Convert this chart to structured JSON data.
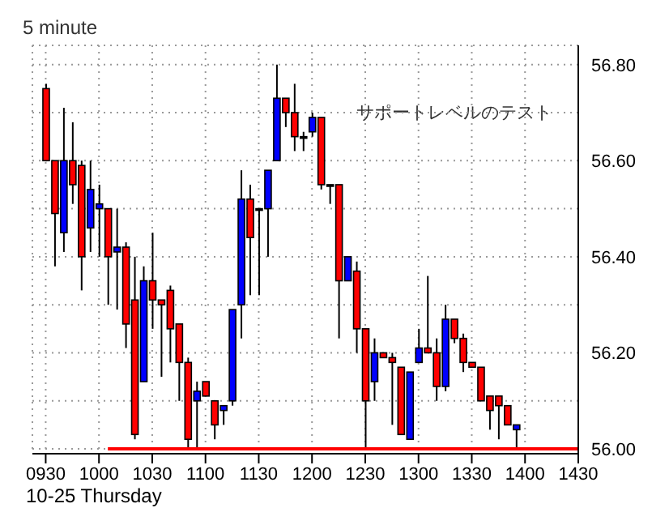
{
  "chart_data": {
    "type": "candlestick",
    "title": "5 minute",
    "xlabel": "10-25 Thursday",
    "annotations": [
      "サポートレベルのテスト"
    ],
    "categories": [
      "0930",
      null,
      null,
      null,
      null,
      null,
      "1000",
      null,
      null,
      null,
      null,
      null,
      "1030",
      null,
      null,
      null,
      null,
      null,
      "1100",
      null,
      null,
      null,
      null,
      null,
      "1130",
      null,
      null,
      null,
      null,
      null,
      "1200",
      null,
      null,
      null,
      null,
      null,
      "1230",
      null,
      null,
      null,
      null,
      null,
      "1300",
      null,
      null,
      null,
      null,
      null,
      "1330",
      null,
      null,
      null,
      null,
      null,
      "1400",
      null,
      null,
      null,
      null,
      null,
      "1430"
    ],
    "ohlc": [
      [
        56.75,
        56.76,
        56.6,
        56.6
      ],
      [
        56.6,
        56.6,
        56.38,
        56.49
      ],
      [
        56.45,
        56.71,
        56.41,
        56.6
      ],
      [
        56.6,
        56.68,
        56.51,
        56.55
      ],
      [
        56.59,
        56.6,
        56.33,
        56.4
      ],
      [
        56.46,
        56.6,
        56.41,
        56.54
      ],
      [
        56.5,
        56.55,
        56.4,
        56.51
      ],
      [
        56.5,
        56.5,
        56.3,
        56.4
      ],
      [
        56.41,
        56.5,
        56.29,
        56.42
      ],
      [
        56.42,
        56.43,
        56.21,
        56.26
      ],
      [
        56.31,
        56.4,
        56.02,
        56.03
      ],
      [
        56.14,
        56.38,
        56.14,
        56.35
      ],
      [
        56.35,
        56.45,
        56.25,
        56.31
      ],
      [
        56.31,
        56.31,
        56.15,
        56.3
      ],
      [
        56.33,
        56.34,
        56.18,
        56.25
      ],
      [
        56.26,
        56.26,
        56.1,
        56.18
      ],
      [
        56.18,
        56.19,
        56.0,
        56.02
      ],
      [
        56.1,
        56.14,
        56.0,
        56.12
      ],
      [
        56.14,
        56.14,
        56.11,
        56.11
      ],
      [
        56.1,
        56.1,
        56.02,
        56.05
      ],
      [
        56.08,
        56.09,
        56.05,
        56.09
      ],
      [
        56.1,
        56.29,
        56.09,
        56.29
      ],
      [
        56.3,
        56.58,
        56.23,
        56.52
      ],
      [
        56.52,
        56.55,
        56.32,
        56.44
      ],
      [
        56.5,
        56.5,
        56.32,
        56.5
      ],
      [
        56.5,
        56.58,
        56.4,
        56.58
      ],
      [
        56.6,
        56.8,
        56.6,
        56.73
      ],
      [
        56.73,
        56.73,
        56.67,
        56.7
      ],
      [
        56.7,
        56.76,
        56.62,
        56.65
      ],
      [
        56.65,
        56.66,
        56.62,
        56.65
      ],
      [
        56.66,
        56.7,
        56.65,
        56.69
      ],
      [
        56.69,
        56.69,
        56.54,
        56.55
      ],
      [
        56.55,
        56.55,
        56.51,
        56.55
      ],
      [
        56.55,
        56.55,
        56.23,
        56.35
      ],
      [
        56.35,
        56.4,
        56.35,
        56.4
      ],
      [
        56.37,
        56.39,
        56.2,
        56.25
      ],
      [
        56.25,
        56.25,
        56.0,
        56.1
      ],
      [
        56.14,
        56.23,
        56.1,
        56.2
      ],
      [
        56.2,
        56.2,
        56.19,
        56.19
      ],
      [
        56.19,
        56.2,
        56.05,
        56.18
      ],
      [
        56.17,
        56.17,
        56.03,
        56.03
      ],
      [
        56.02,
        56.16,
        56.02,
        56.16
      ],
      [
        56.18,
        56.25,
        56.18,
        56.21
      ],
      [
        56.21,
        56.36,
        56.2,
        56.2
      ],
      [
        56.2,
        56.23,
        56.1,
        56.13
      ],
      [
        56.13,
        56.3,
        56.12,
        56.27
      ],
      [
        56.27,
        56.27,
        56.22,
        56.23
      ],
      [
        56.23,
        56.24,
        56.16,
        56.18
      ],
      [
        56.18,
        56.18,
        56.17,
        56.17
      ],
      [
        56.17,
        56.17,
        56.1,
        56.1
      ],
      [
        56.11,
        56.11,
        56.04,
        56.08
      ],
      [
        56.11,
        56.11,
        56.02,
        56.09
      ],
      [
        56.09,
        56.09,
        56.05,
        56.05
      ],
      [
        56.04,
        56.05,
        56.0,
        56.05
      ],
      null,
      null,
      null,
      null,
      null,
      null,
      null
    ],
    "colors": [
      "#ff0000",
      "#ff0000",
      "#0000ff",
      "#ff0000",
      "#ff0000",
      "#0000ff",
      "#0000ff",
      "#ff0000",
      "#0000ff",
      "#ff0000",
      "#ff0000",
      "#0000ff",
      "#ff0000",
      "#ff0000",
      "#ff0000",
      "#ff0000",
      "#ff0000",
      "#0000ff",
      "#ff0000",
      "#ff0000",
      "#0000ff",
      "#0000ff",
      "#0000ff",
      "#ff0000",
      "#000000",
      "#0000ff",
      "#0000ff",
      "#ff0000",
      "#ff0000",
      "#000000",
      "#0000ff",
      "#ff0000",
      "#000000",
      "#ff0000",
      "#0000ff",
      "#ff0000",
      "#ff0000",
      "#0000ff",
      "#ff0000",
      "#ff0000",
      "#ff0000",
      "#0000ff",
      "#0000ff",
      "#ff0000",
      "#ff0000",
      "#0000ff",
      "#ff0000",
      "#ff0000",
      "#ff0000",
      "#ff0000",
      "#ff0000",
      "#ff0000",
      "#ff0000",
      "#0000ff",
      null,
      null,
      null,
      null,
      null,
      null,
      null
    ],
    "series": [
      {
        "type": "line",
        "values": [
          null,
          null,
          null,
          null,
          null,
          null,
          null,
          56.0,
          56.0,
          56.0,
          56.0,
          56.0,
          56.0,
          56.0,
          56.0,
          56.0,
          56.0,
          56.0,
          56.0,
          56.0,
          56.0,
          56.0,
          56.0,
          56.0,
          56.0,
          56.0,
          56.0,
          56.0,
          56.0,
          56.0,
          56.0,
          56.0,
          56.0,
          56.0,
          56.0,
          56.0,
          56.0,
          56.0,
          56.0,
          56.0,
          56.0,
          56.0,
          56.0,
          56.0,
          56.0,
          56.0,
          56.0,
          56.0,
          56.0,
          56.0,
          56.0,
          56.0,
          56.0,
          56.0,
          56.0,
          56.0,
          56.0,
          56.0,
          56.0,
          56.0,
          56.0
        ],
        "color": "#ff0000"
      }
    ],
    "ylim": [
      55.99,
      56.84
    ],
    "yticks": [
      {
        "value": 56,
        "label": "56.00"
      },
      {
        "value": 56.1,
        "label": null
      },
      {
        "value": 56.2,
        "label": "56.20"
      },
      {
        "value": 56.3,
        "label": null
      },
      {
        "value": 56.4,
        "label": "56.40"
      },
      {
        "value": 56.5,
        "label": null
      },
      {
        "value": 56.6,
        "label": "56.60"
      },
      {
        "value": 56.7,
        "label": null
      },
      {
        "value": 56.8,
        "label": "56.80"
      }
    ],
    "grid": true
  }
}
